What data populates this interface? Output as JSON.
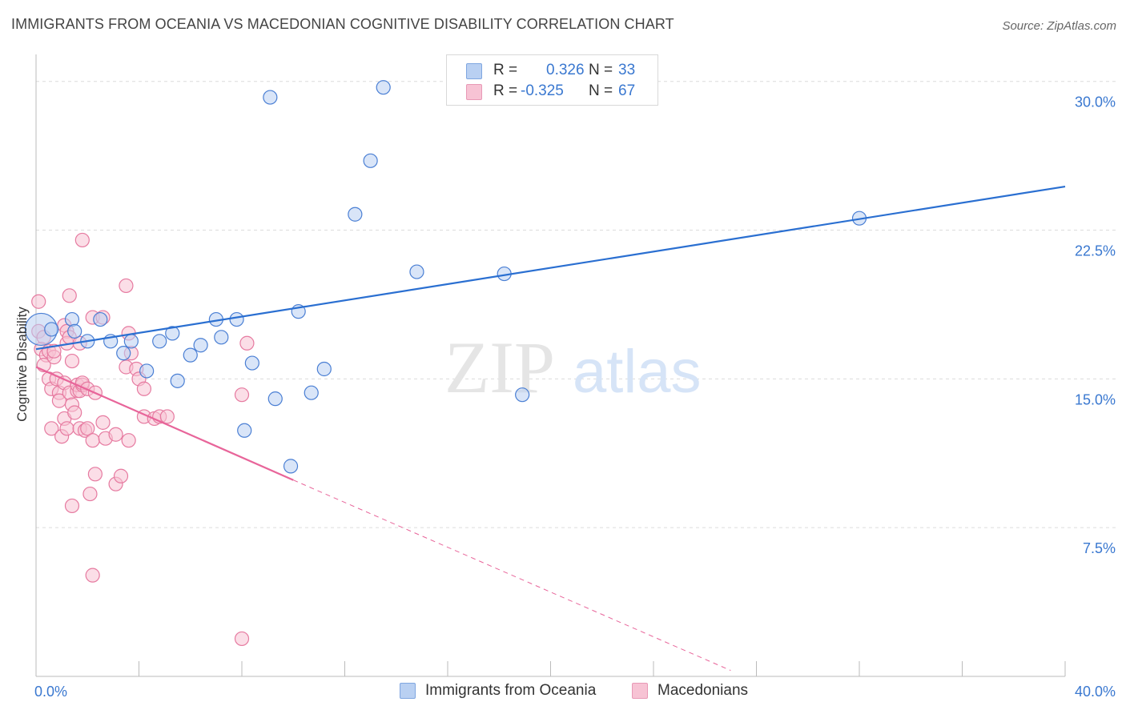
{
  "title": "IMMIGRANTS FROM OCEANIA VS MACEDONIAN COGNITIVE DISABILITY CORRELATION CHART",
  "source": "Source: ZipAtlas.com",
  "watermark": {
    "zip": "ZIP",
    "atlas": "atlas"
  },
  "colors": {
    "blue": "#4a7fd4",
    "blue_fill": "#b9d0f2",
    "blue_line": "#2a6fd1",
    "pink": "#e67aa0",
    "pink_fill": "#f7c3d4",
    "pink_line": "#e8659a",
    "tick_text": "#3a78d0",
    "grid": "#dcdcdc"
  },
  "legend": {
    "r_label": "R =",
    "n_label": "N =",
    "series1": {
      "r": "0.326",
      "n": "33"
    },
    "series2": {
      "r": "-0.325",
      "n": "67"
    }
  },
  "chart_data": {
    "type": "scatter",
    "title": "IMMIGRANTS FROM OCEANIA VS MACEDONIAN COGNITIVE DISABILITY CORRELATION CHART",
    "xlabel": "",
    "ylabel": "Cognitive Disability",
    "xlim": [
      0,
      40
    ],
    "ylim": [
      0,
      31.2
    ],
    "x_tick_labels": [
      "0.0%",
      "40.0%"
    ],
    "y_ticks": [
      7.5,
      15.0,
      22.5,
      30.0
    ],
    "y_tick_labels": [
      "7.5%",
      "15.0%",
      "22.5%",
      "30.0%"
    ],
    "grid": true,
    "legend_position": "top-center",
    "series": [
      {
        "name": "Immigrants from Oceania",
        "color": "#4a7fd4",
        "trend": {
          "x0": 0.0,
          "y0": 16.5,
          "x1": 40.0,
          "y1": 24.7
        },
        "points": [
          {
            "x": 0.2,
            "y": 17.5,
            "big": true
          },
          {
            "x": 0.6,
            "y": 17.5
          },
          {
            "x": 1.4,
            "y": 18.0
          },
          {
            "x": 1.5,
            "y": 17.4
          },
          {
            "x": 2.0,
            "y": 16.9
          },
          {
            "x": 2.5,
            "y": 18.0
          },
          {
            "x": 2.9,
            "y": 16.9
          },
          {
            "x": 3.4,
            "y": 16.3
          },
          {
            "x": 3.7,
            "y": 16.9
          },
          {
            "x": 4.3,
            "y": 15.4
          },
          {
            "x": 4.8,
            "y": 16.9
          },
          {
            "x": 5.3,
            "y": 17.3
          },
          {
            "x": 5.5,
            "y": 14.9
          },
          {
            "x": 6.0,
            "y": 16.2
          },
          {
            "x": 6.4,
            "y": 16.7
          },
          {
            "x": 7.0,
            "y": 18.0
          },
          {
            "x": 7.2,
            "y": 17.1
          },
          {
            "x": 7.8,
            "y": 18.0
          },
          {
            "x": 8.1,
            "y": 12.4
          },
          {
            "x": 8.4,
            "y": 15.8
          },
          {
            "x": 9.1,
            "y": 29.2
          },
          {
            "x": 9.3,
            "y": 14.0
          },
          {
            "x": 9.9,
            "y": 10.6
          },
          {
            "x": 10.2,
            "y": 18.4
          },
          {
            "x": 10.7,
            "y": 14.3
          },
          {
            "x": 11.2,
            "y": 15.5
          },
          {
            "x": 12.4,
            "y": 23.3
          },
          {
            "x": 13.0,
            "y": 26.0
          },
          {
            "x": 13.5,
            "y": 29.7
          },
          {
            "x": 14.8,
            "y": 20.4
          },
          {
            "x": 18.2,
            "y": 20.3
          },
          {
            "x": 18.9,
            "y": 14.2
          },
          {
            "x": 32.0,
            "y": 23.1
          }
        ]
      },
      {
        "name": "Macedonians",
        "color": "#e67aa0",
        "trend": {
          "x0": 0.0,
          "y0": 15.6,
          "x1": 10.0,
          "y1": 9.9,
          "dash_x1": 27.0,
          "dash_y1": 0.3
        },
        "points": [
          {
            "x": 0.1,
            "y": 18.9
          },
          {
            "x": 0.1,
            "y": 17.4
          },
          {
            "x": 0.3,
            "y": 17.1
          },
          {
            "x": 0.2,
            "y": 16.5
          },
          {
            "x": 0.4,
            "y": 16.2
          },
          {
            "x": 0.3,
            "y": 15.7
          },
          {
            "x": 0.5,
            "y": 16.4
          },
          {
            "x": 0.5,
            "y": 15.0
          },
          {
            "x": 0.6,
            "y": 14.5
          },
          {
            "x": 0.7,
            "y": 16.1
          },
          {
            "x": 0.7,
            "y": 16.4
          },
          {
            "x": 0.8,
            "y": 15.0
          },
          {
            "x": 0.6,
            "y": 12.5
          },
          {
            "x": 0.9,
            "y": 14.3
          },
          {
            "x": 0.9,
            "y": 13.9
          },
          {
            "x": 1.0,
            "y": 12.1
          },
          {
            "x": 1.1,
            "y": 14.8
          },
          {
            "x": 1.1,
            "y": 17.7
          },
          {
            "x": 1.2,
            "y": 17.4
          },
          {
            "x": 1.1,
            "y": 13.0
          },
          {
            "x": 1.2,
            "y": 16.8
          },
          {
            "x": 1.2,
            "y": 12.5
          },
          {
            "x": 1.3,
            "y": 14.3
          },
          {
            "x": 1.3,
            "y": 17.1
          },
          {
            "x": 1.4,
            "y": 15.9
          },
          {
            "x": 1.3,
            "y": 19.2
          },
          {
            "x": 1.4,
            "y": 13.7
          },
          {
            "x": 1.5,
            "y": 13.3
          },
          {
            "x": 1.6,
            "y": 14.4
          },
          {
            "x": 1.6,
            "y": 14.7
          },
          {
            "x": 1.7,
            "y": 16.8
          },
          {
            "x": 1.7,
            "y": 12.5
          },
          {
            "x": 1.7,
            "y": 14.4
          },
          {
            "x": 1.8,
            "y": 14.7
          },
          {
            "x": 1.8,
            "y": 22.0
          },
          {
            "x": 1.8,
            "y": 14.8
          },
          {
            "x": 1.9,
            "y": 12.4
          },
          {
            "x": 2.0,
            "y": 14.5
          },
          {
            "x": 2.0,
            "y": 12.5
          },
          {
            "x": 2.1,
            "y": 9.2
          },
          {
            "x": 2.2,
            "y": 11.9
          },
          {
            "x": 2.2,
            "y": 18.1
          },
          {
            "x": 2.3,
            "y": 14.3
          },
          {
            "x": 2.3,
            "y": 10.2
          },
          {
            "x": 2.2,
            "y": 5.1
          },
          {
            "x": 1.4,
            "y": 8.6
          },
          {
            "x": 2.6,
            "y": 18.1
          },
          {
            "x": 2.6,
            "y": 12.8
          },
          {
            "x": 2.7,
            "y": 12.0
          },
          {
            "x": 3.1,
            "y": 12.2
          },
          {
            "x": 3.1,
            "y": 9.7
          },
          {
            "x": 3.3,
            "y": 10.1
          },
          {
            "x": 3.5,
            "y": 15.6
          },
          {
            "x": 3.5,
            "y": 19.7
          },
          {
            "x": 3.6,
            "y": 17.3
          },
          {
            "x": 3.6,
            "y": 11.9
          },
          {
            "x": 3.7,
            "y": 16.3
          },
          {
            "x": 3.9,
            "y": 15.5
          },
          {
            "x": 4.0,
            "y": 15.0
          },
          {
            "x": 4.2,
            "y": 13.1
          },
          {
            "x": 4.2,
            "y": 14.5
          },
          {
            "x": 4.6,
            "y": 13.0
          },
          {
            "x": 4.8,
            "y": 13.1
          },
          {
            "x": 5.1,
            "y": 13.1
          },
          {
            "x": 8.0,
            "y": 14.2
          },
          {
            "x": 8.2,
            "y": 16.8
          },
          {
            "x": 8.0,
            "y": 1.9
          }
        ]
      }
    ]
  }
}
